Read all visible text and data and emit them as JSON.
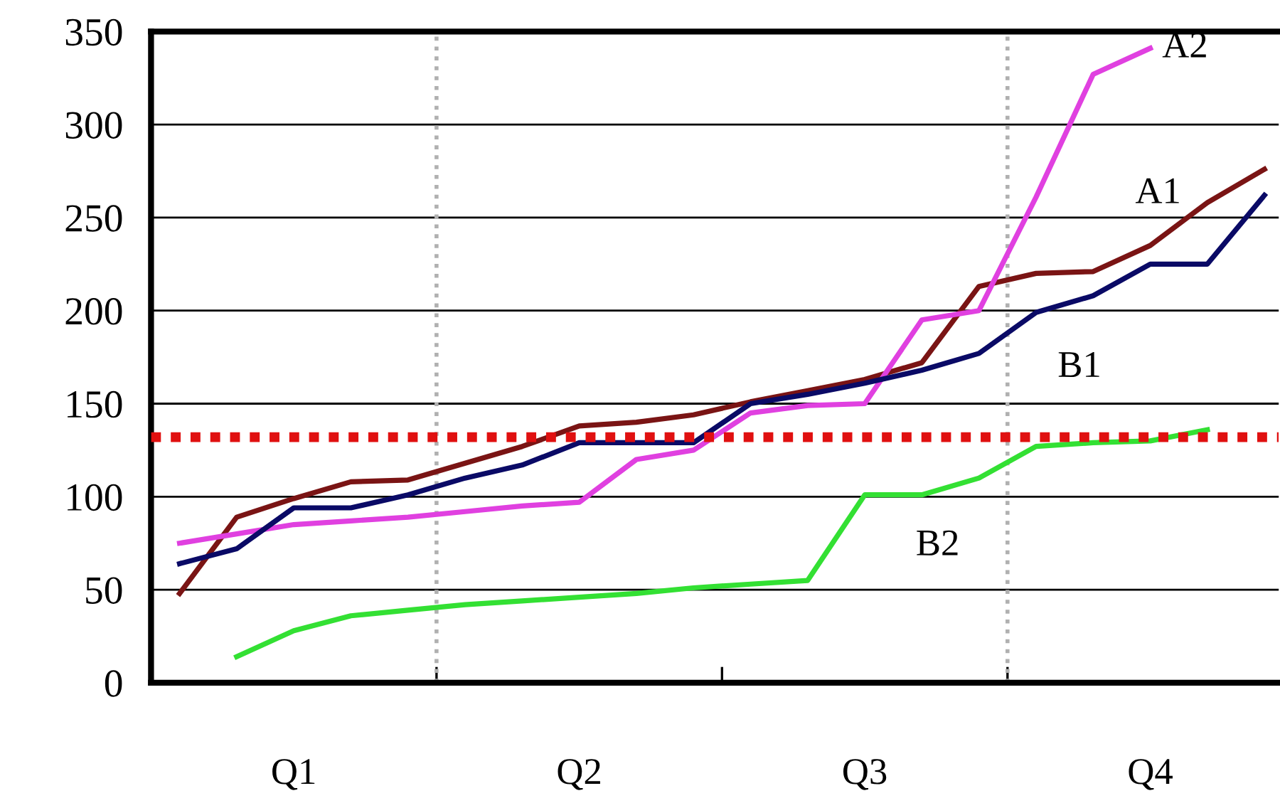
{
  "chart_data": {
    "type": "line",
    "categories": [
      null,
      null,
      "Q1",
      null,
      null,
      null,
      null,
      "Q2",
      null,
      null,
      null,
      null,
      "Q3",
      null,
      null,
      null,
      null,
      "Q4",
      null,
      null
    ],
    "series": [
      {
        "name": "A1",
        "color": "#7a1414",
        "values": [
          48,
          89,
          99,
          108,
          109,
          118,
          127,
          138,
          140,
          144,
          151,
          157,
          163,
          172,
          213,
          220,
          221,
          235,
          258,
          276
        ]
      },
      {
        "name": "A2",
        "color": "#e040e0",
        "values": [
          75,
          80,
          85,
          87,
          89,
          92,
          95,
          97,
          120,
          125,
          145,
          149,
          150,
          195,
          200,
          261,
          327,
          341,
          null,
          null
        ]
      },
      {
        "name": "B1",
        "color": "#0a0a66",
        "values": [
          64,
          72,
          94,
          94,
          101,
          110,
          117,
          129,
          129,
          129,
          150,
          155,
          161,
          168,
          177,
          199,
          208,
          225,
          225,
          262
        ]
      },
      {
        "name": "B2",
        "color": "#33e033",
        "values": [
          null,
          14,
          28,
          36,
          39,
          42,
          44,
          46,
          48,
          51,
          53,
          55,
          101,
          101,
          110,
          127,
          129,
          130,
          136,
          null
        ]
      }
    ],
    "ylim": [
      0,
      350
    ],
    "yticks": [
      0,
      50,
      100,
      150,
      200,
      250,
      300,
      350
    ],
    "grid": "y",
    "legend": false,
    "marker": "none",
    "line_style": "solid",
    "ref_lines": [
      {
        "axis": "y",
        "value": 132,
        "color": "#e01010",
        "line_style": "dotted"
      }
    ]
  }
}
